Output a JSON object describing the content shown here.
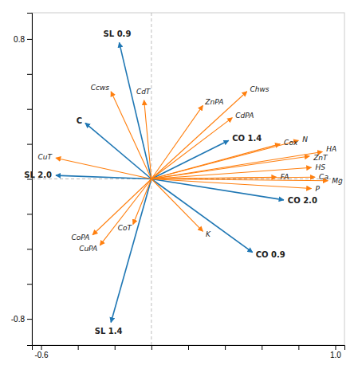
{
  "chart_data": {
    "type": "biplot",
    "xlim": [
      -0.65,
      1.05
    ],
    "ylim": [
      -0.95,
      0.95
    ],
    "xticks": [
      -0.6,
      {
        "value": -0.4,
        "label": null
      },
      {
        "value": -0.2,
        "label": null
      },
      {
        "value": 0.0,
        "label": null
      },
      {
        "value": 0.2,
        "label": null
      },
      {
        "value": 0.4,
        "label": null
      },
      {
        "value": 0.6,
        "label": null
      },
      {
        "value": 0.8,
        "label": null
      },
      {
        "value": 1.0,
        "label": "1.0"
      }
    ],
    "yticks": [
      -0.8,
      {
        "value": -0.6,
        "label": null
      },
      {
        "value": -0.4,
        "label": null
      },
      {
        "value": -0.2,
        "label": null
      },
      {
        "value": 0.0,
        "label": null
      },
      {
        "value": 0.2,
        "label": null
      },
      {
        "value": 0.4,
        "label": null
      },
      {
        "value": 0.6,
        "label": null
      },
      0.8
    ],
    "site_arrows": [
      {
        "label": "SL 0.9",
        "x": -0.175,
        "y": 0.78
      },
      {
        "label": "SL 2.0",
        "x": -0.52,
        "y": 0.02
      },
      {
        "label": "SL 1.4",
        "x": -0.22,
        "y": -0.82
      },
      {
        "label": "C",
        "x": -0.36,
        "y": 0.32
      },
      {
        "label": "CO 1.4",
        "x": 0.42,
        "y": 0.22
      },
      {
        "label": "CO 2.0",
        "x": 0.72,
        "y": -0.12
      },
      {
        "label": "CO 0.9",
        "x": 0.55,
        "y": -0.42
      }
    ],
    "env_arrows": [
      {
        "label": "Ccws",
        "x": -0.22,
        "y": 0.5
      },
      {
        "label": "CdT",
        "x": -0.04,
        "y": 0.45
      },
      {
        "label": "ZnPA",
        "x": 0.28,
        "y": 0.42
      },
      {
        "label": "Chws",
        "x": 0.52,
        "y": 0.5
      },
      {
        "label": "CdPA",
        "x": 0.44,
        "y": 0.35
      },
      {
        "label": "Cox",
        "x": 0.7,
        "y": 0.2
      },
      {
        "label": "N",
        "x": 0.8,
        "y": 0.22
      },
      {
        "label": "ZnT",
        "x": 0.86,
        "y": 0.13
      },
      {
        "label": "HA",
        "x": 0.93,
        "y": 0.155
      },
      {
        "label": "HS",
        "x": 0.87,
        "y": 0.065
      },
      {
        "label": "FA",
        "x": 0.68,
        "y": 0.01
      },
      {
        "label": "Ca",
        "x": 0.89,
        "y": 0.01
      },
      {
        "label": "Mg",
        "x": 0.96,
        "y": -0.01
      },
      {
        "label": "P",
        "x": 0.87,
        "y": -0.055
      },
      {
        "label": "K",
        "x": 0.28,
        "y": -0.3
      },
      {
        "label": "CoT",
        "x": -0.1,
        "y": -0.26
      },
      {
        "label": "CoPA",
        "x": -0.32,
        "y": -0.32
      },
      {
        "label": "CuPA",
        "x": -0.28,
        "y": -0.38
      },
      {
        "label": "CuT",
        "x": -0.52,
        "y": 0.12
      }
    ]
  }
}
